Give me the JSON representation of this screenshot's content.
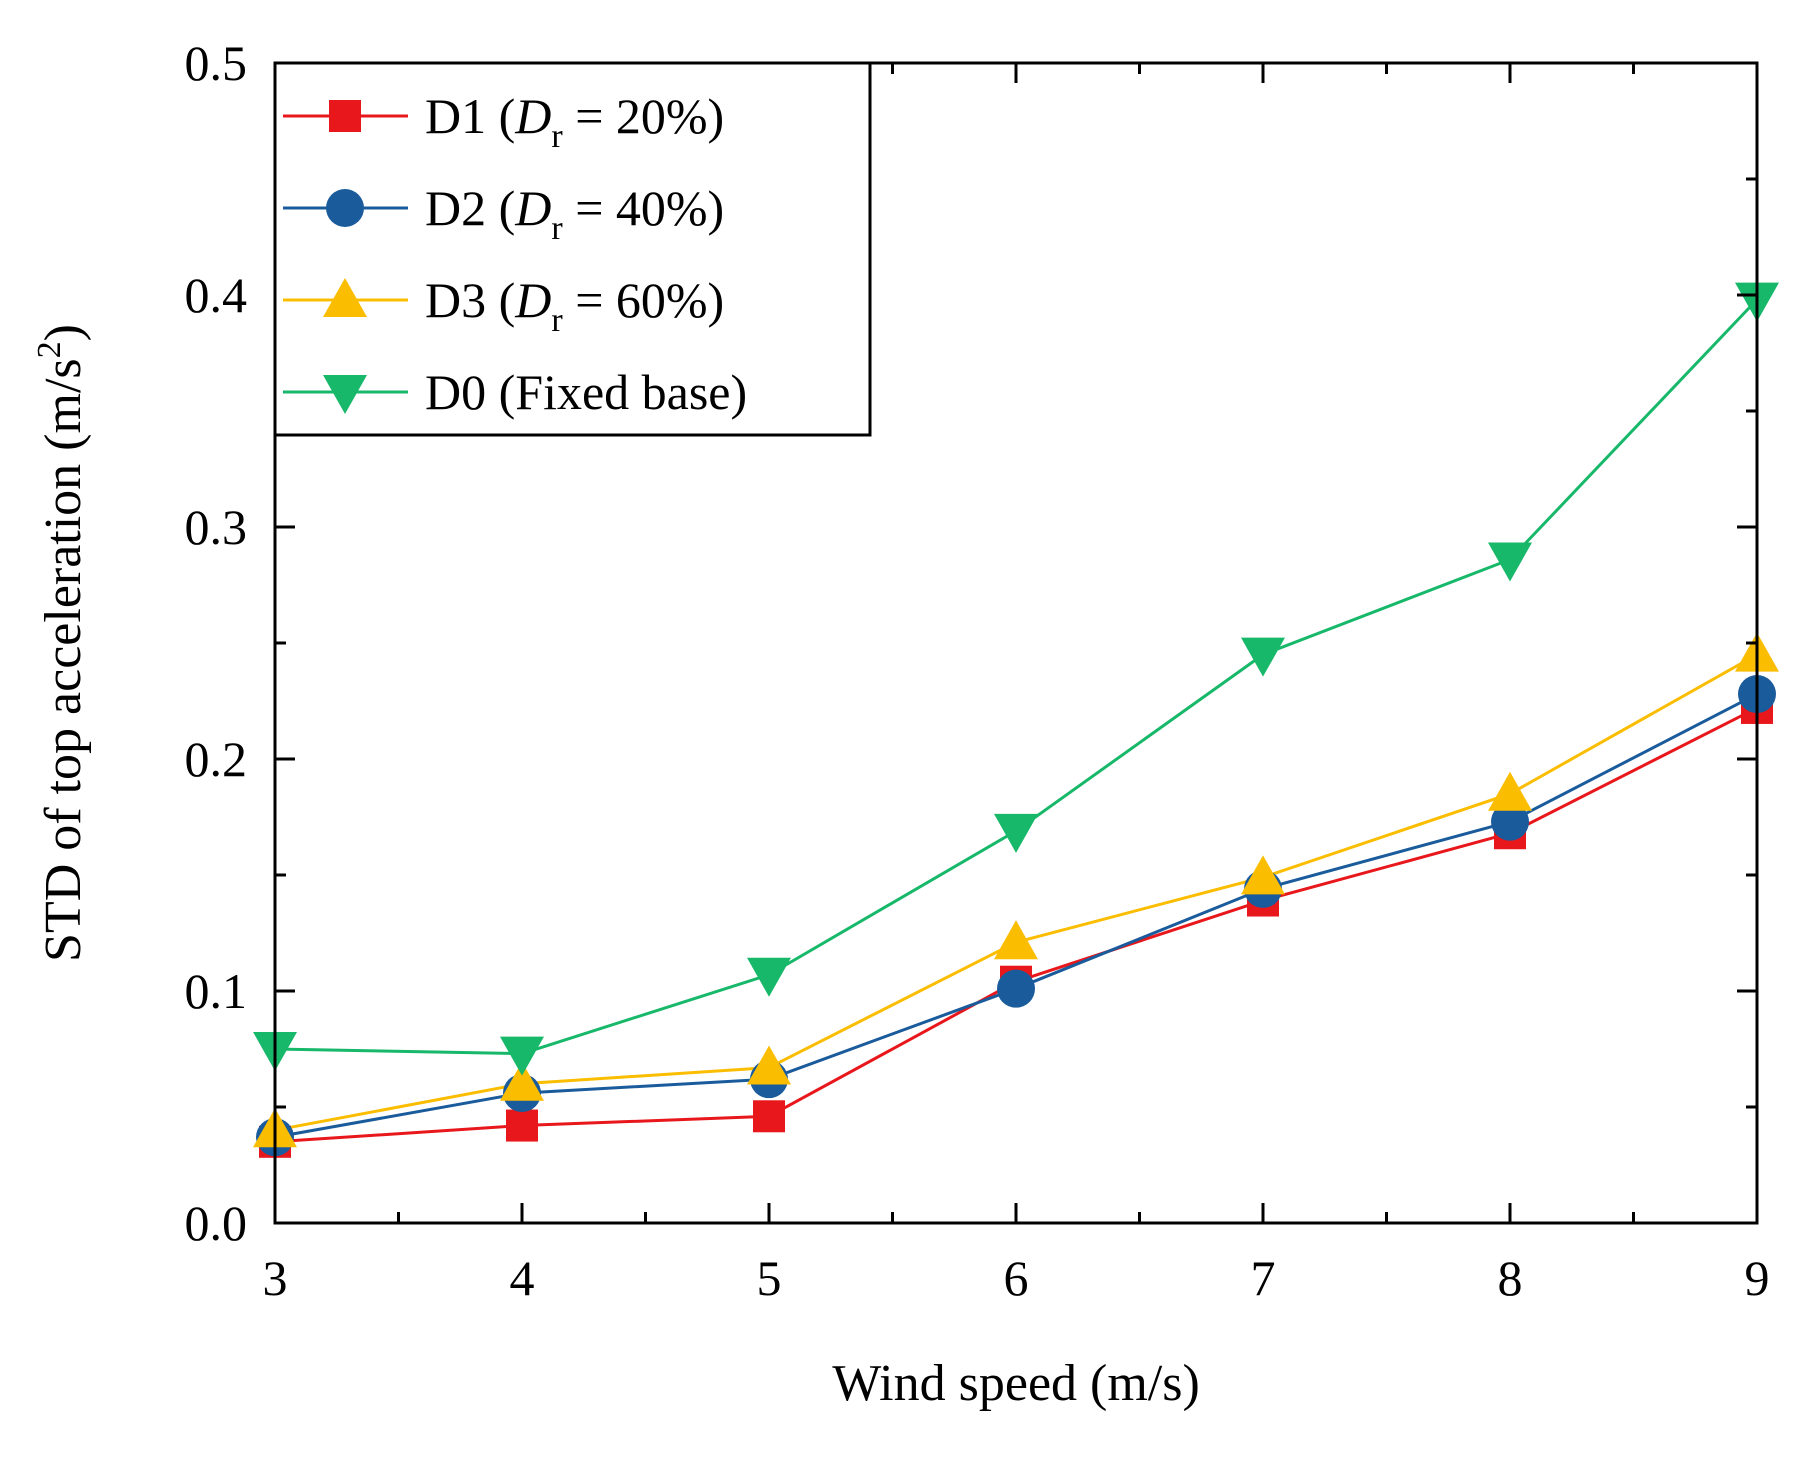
{
  "chart_data": {
    "type": "line",
    "title": "",
    "xlabel": "Wind speed (m/s)",
    "ylabel": {
      "main": "STD of top acceleration (m/s",
      "superscript": "2",
      "close": ")"
    },
    "x": [
      3,
      4,
      5,
      6,
      7,
      8,
      9
    ],
    "xlim": [
      3,
      9
    ],
    "ylim": [
      0.0,
      0.5
    ],
    "xticks": [
      3,
      4,
      5,
      6,
      7,
      8,
      9
    ],
    "xtick_labels": [
      "3",
      "4",
      "5",
      "6",
      "7",
      "8",
      "9"
    ],
    "xminor_ticks": [
      3.5,
      4.5,
      5.5,
      6.5,
      7.5,
      8.5
    ],
    "yticks": [
      0.0,
      0.1,
      0.2,
      0.3,
      0.4,
      0.5
    ],
    "ytick_labels": [
      "0.0",
      "0.1",
      "0.2",
      "0.3",
      "0.4",
      "0.5"
    ],
    "yminor_ticks": [
      0.05,
      0.15,
      0.25,
      0.35,
      0.45
    ],
    "grid": false,
    "legend_position": "top-left",
    "series": [
      {
        "id": "d1",
        "name": "D1",
        "legend_parts": {
          "pre": "D1 (",
          "symbol": "D",
          "subscript": "r",
          "post": " = 20%)"
        },
        "color": "#e8171b",
        "marker": "square",
        "values": [
          0.035,
          0.042,
          0.046,
          0.104,
          0.139,
          0.168,
          0.222
        ]
      },
      {
        "id": "d2",
        "name": "D2",
        "legend_parts": {
          "pre": "D2 (",
          "symbol": "D",
          "subscript": "r",
          "post": " = 40%)"
        },
        "color": "#1a5b9c",
        "marker": "circle",
        "values": [
          0.037,
          0.056,
          0.062,
          0.101,
          0.144,
          0.173,
          0.228
        ]
      },
      {
        "id": "d3",
        "name": "D3",
        "legend_parts": {
          "pre": "D3 (",
          "symbol": "D",
          "subscript": "r",
          "post": " = 60%)"
        },
        "color": "#fbbd00",
        "marker": "triangle-up",
        "values": [
          0.04,
          0.06,
          0.067,
          0.121,
          0.149,
          0.185,
          0.245
        ]
      },
      {
        "id": "d0",
        "name": "D0 (Fixed base)",
        "legend_parts": {
          "pre": "D0 (Fixed base)",
          "symbol": "",
          "subscript": "",
          "post": ""
        },
        "color": "#17b86a",
        "marker": "triangle-down",
        "values": [
          0.075,
          0.073,
          0.107,
          0.169,
          0.245,
          0.286,
          0.398
        ]
      }
    ]
  }
}
